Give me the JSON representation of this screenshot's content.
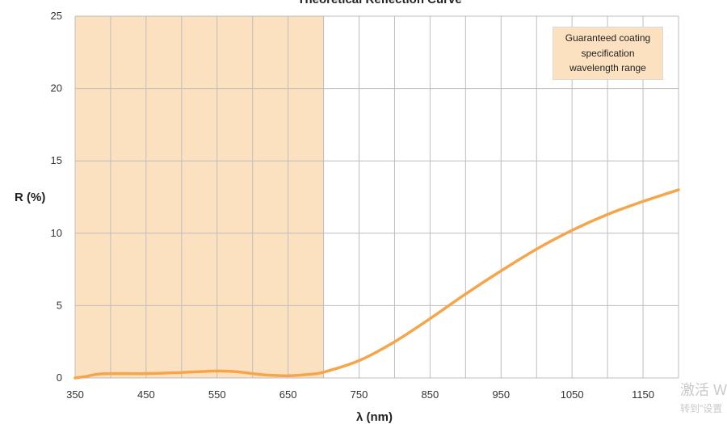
{
  "chart_data": {
    "type": "line",
    "title": "Theoretical Reflection Curve",
    "xlabel": "λ (nm)",
    "ylabel": "R (%)",
    "xlim": [
      350,
      1200
    ],
    "ylim": [
      0,
      25
    ],
    "x_ticks": [
      350,
      450,
      550,
      650,
      750,
      850,
      950,
      1050,
      1150
    ],
    "y_ticks": [
      0,
      5,
      10,
      15,
      20,
      25
    ],
    "grid": true,
    "shaded_region": {
      "x_range": [
        350,
        700
      ],
      "label_lines": [
        "Guaranteed coating",
        "specification",
        "wavelength range"
      ],
      "color": "#fce1c0"
    },
    "series": [
      {
        "color": "#f5a54a",
        "x": [
          350,
          365,
          380,
          400,
          450,
          500,
          550,
          580,
          600,
          620,
          650,
          680,
          700,
          750,
          800,
          850,
          900,
          950,
          1000,
          1050,
          1100,
          1150,
          1200
        ],
        "y": [
          0,
          0.1,
          0.25,
          0.3,
          0.3,
          0.38,
          0.48,
          0.42,
          0.3,
          0.2,
          0.15,
          0.25,
          0.4,
          1.2,
          2.5,
          4.1,
          5.8,
          7.4,
          8.9,
          10.2,
          11.3,
          12.2,
          13.0
        ]
      }
    ]
  },
  "watermark": {
    "line1": "激活 W",
    "line2": "转到\"设置"
  }
}
